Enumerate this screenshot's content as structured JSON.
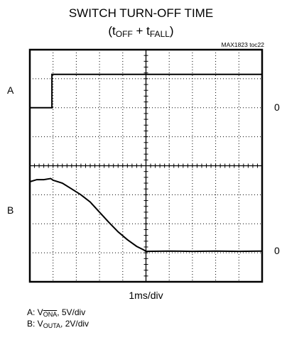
{
  "chart_data": {
    "type": "line",
    "title": "SWITCH TURN-OFF TIME",
    "subtitle": {
      "open": "(t",
      "sub1": "OFF",
      "mid": " + t",
      "sub2": "FALL",
      "close": ")"
    },
    "reference": "MAX1823 toc22",
    "xlabel": "1ms/div",
    "divisions": {
      "x": 10,
      "y": 8
    },
    "grid": true,
    "xlim": [
      0,
      10
    ],
    "ylim": [
      0,
      8
    ],
    "traces": [
      {
        "label": "A",
        "zero_label": "0",
        "zero_div": 6,
        "points": [
          [
            0,
            6
          ],
          [
            0.95,
            6
          ],
          [
            0.95,
            7.15
          ],
          [
            3,
            7.15
          ],
          [
            6,
            7.15
          ],
          [
            10,
            7.15
          ]
        ]
      },
      {
        "label": "B",
        "zero_label": "0",
        "zero_div": 1.05,
        "points": [
          [
            0,
            3.45
          ],
          [
            0.3,
            3.52
          ],
          [
            0.6,
            3.52
          ],
          [
            0.9,
            3.56
          ],
          [
            1.0,
            3.5
          ],
          [
            1.4,
            3.4
          ],
          [
            1.8,
            3.2
          ],
          [
            2.2,
            3.0
          ],
          [
            2.6,
            2.75
          ],
          [
            3.0,
            2.4
          ],
          [
            3.4,
            2.05
          ],
          [
            3.8,
            1.72
          ],
          [
            4.2,
            1.45
          ],
          [
            4.6,
            1.22
          ],
          [
            4.9,
            1.1
          ],
          [
            5.0,
            1.05
          ],
          [
            6.0,
            1.06
          ],
          [
            7.0,
            1.05
          ],
          [
            8.0,
            1.06
          ],
          [
            9.0,
            1.05
          ],
          [
            10,
            1.06
          ]
        ]
      }
    ],
    "legend": [
      {
        "prefix": "A: V",
        "sub": "ONA",
        "suffix": ", 5V/div",
        "overline": true
      },
      {
        "prefix": "B: V",
        "sub": "OUTA",
        "suffix": ", 2V/div",
        "overline": false
      }
    ]
  }
}
